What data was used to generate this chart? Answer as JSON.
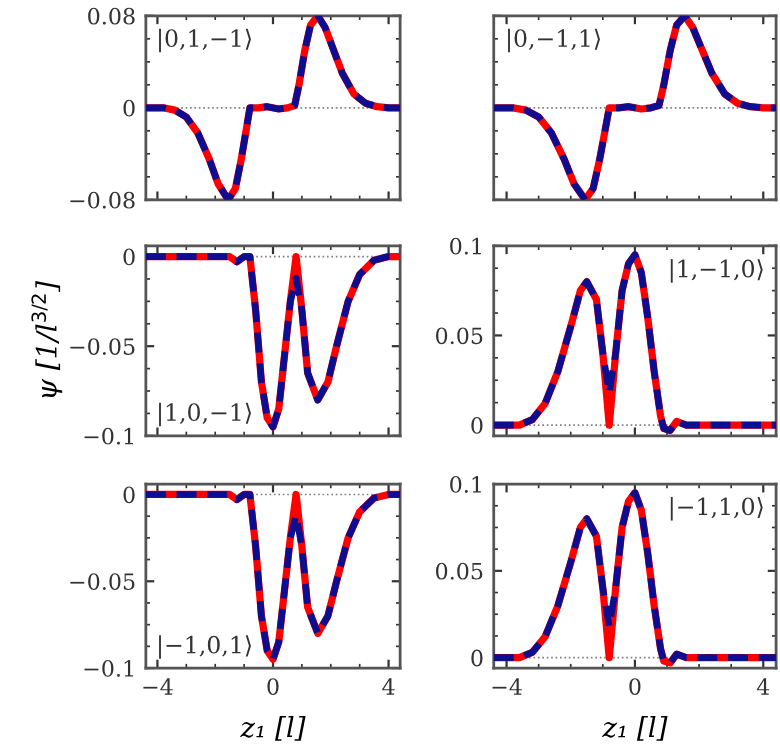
{
  "chart_data": [
    {
      "type": "line",
      "annotations": [
        "|0,1,−1⟩"
      ],
      "xlim": [
        -4.4,
        4.4
      ],
      "xticks": [
        -4,
        0,
        4
      ],
      "ylim": [
        -0.08,
        0.08
      ],
      "yticks": [
        {
          "value": -0.08,
          "label": "−0.08"
        },
        0,
        0.08
      ],
      "tick_labels": "y",
      "ref_lines": [
        {
          "axis": "y",
          "value": 0,
          "color": "#808080",
          "line_style": "dotted"
        }
      ],
      "series": [
        {
          "color": "#ff0000",
          "line_style": "solid",
          "x": [
            -4.4,
            -3.8,
            -3.4,
            -3.0,
            -2.6,
            -2.2,
            -1.9,
            -1.55,
            -1.3,
            -1.1,
            -0.9,
            -0.8,
            -0.5,
            -0.2,
            0.2,
            0.5,
            0.75,
            0.9,
            1.1,
            1.3,
            1.55,
            1.8,
            2.1,
            2.4,
            2.8,
            3.2,
            3.6,
            4.0,
            4.4
          ],
          "values": [
            0,
            0,
            -0.002,
            -0.008,
            -0.022,
            -0.045,
            -0.066,
            -0.08,
            -0.07,
            -0.045,
            -0.015,
            0,
            0,
            0.001,
            -0.001,
            0,
            0.002,
            0.02,
            0.05,
            0.072,
            0.08,
            0.07,
            0.05,
            0.03,
            0.012,
            0.004,
            0.001,
            0,
            0
          ]
        },
        {
          "color": "#0d0d8f",
          "line_style": "dashed",
          "x": [
            -4.4,
            -3.8,
            -3.4,
            -3.0,
            -2.6,
            -2.2,
            -1.9,
            -1.55,
            -1.3,
            -1.1,
            -0.9,
            -0.8,
            -0.5,
            -0.2,
            0.2,
            0.5,
            0.75,
            0.9,
            1.1,
            1.3,
            1.55,
            1.8,
            2.1,
            2.4,
            2.8,
            3.2,
            3.6,
            4.0,
            4.4
          ],
          "values": [
            0,
            0,
            -0.002,
            -0.008,
            -0.022,
            -0.045,
            -0.066,
            -0.08,
            -0.07,
            -0.045,
            -0.015,
            0,
            0,
            0.001,
            -0.001,
            0,
            0.002,
            0.02,
            0.05,
            0.072,
            0.08,
            0.07,
            0.05,
            0.03,
            0.012,
            0.004,
            0.001,
            0,
            0
          ]
        }
      ]
    },
    {
      "type": "line",
      "annotations": [
        "|0,−1,1⟩"
      ],
      "xlim": [
        -4.4,
        4.4
      ],
      "xticks": [
        -4,
        0,
        4
      ],
      "ylim": [
        -0.08,
        0.08
      ],
      "yticks": [
        {
          "value": -0.08,
          "label": null
        },
        0,
        0.08
      ],
      "tick_labels": false,
      "ref_lines": [
        {
          "axis": "y",
          "value": 0,
          "color": "#808080",
          "line_style": "dotted"
        }
      ],
      "series": [
        {
          "color": "#ff0000",
          "line_style": "solid",
          "x": [
            -4.4,
            -3.8,
            -3.4,
            -3.0,
            -2.6,
            -2.2,
            -1.9,
            -1.55,
            -1.3,
            -1.1,
            -0.9,
            -0.8,
            -0.5,
            -0.2,
            0.2,
            0.5,
            0.75,
            0.9,
            1.1,
            1.3,
            1.55,
            1.8,
            2.1,
            2.4,
            2.8,
            3.2,
            3.6,
            4.0,
            4.4
          ],
          "values": [
            0,
            0,
            -0.002,
            -0.008,
            -0.022,
            -0.045,
            -0.066,
            -0.08,
            -0.07,
            -0.045,
            -0.015,
            0,
            0,
            0.001,
            -0.001,
            0,
            0.002,
            0.02,
            0.05,
            0.072,
            0.08,
            0.07,
            0.05,
            0.03,
            0.012,
            0.004,
            0.001,
            0,
            0
          ]
        },
        {
          "color": "#0d0d8f",
          "line_style": "dashed",
          "x": [
            -4.4,
            -3.8,
            -3.4,
            -3.0,
            -2.6,
            -2.2,
            -1.9,
            -1.55,
            -1.3,
            -1.1,
            -0.9,
            -0.8,
            -0.5,
            -0.2,
            0.2,
            0.5,
            0.75,
            0.9,
            1.1,
            1.3,
            1.55,
            1.8,
            2.1,
            2.4,
            2.8,
            3.2,
            3.6,
            4.0,
            4.4
          ],
          "values": [
            0,
            0,
            -0.002,
            -0.008,
            -0.022,
            -0.045,
            -0.066,
            -0.08,
            -0.07,
            -0.045,
            -0.015,
            0,
            0,
            0.001,
            -0.001,
            0,
            0.002,
            0.02,
            0.05,
            0.072,
            0.08,
            0.07,
            0.05,
            0.03,
            0.012,
            0.004,
            0.001,
            0,
            0
          ]
        }
      ]
    },
    {
      "type": "line",
      "annotations": [
        "|1,0,−1⟩"
      ],
      "ylabel": "ψ [1/l$^{3/2}$]",
      "xlim": [
        -4.4,
        4.4
      ],
      "xticks": [
        -4,
        0,
        4
      ],
      "ylim": [
        -0.1,
        0.006
      ],
      "yticks": [
        {
          "value": -0.1,
          "label": "−0.1"
        },
        {
          "value": -0.05,
          "label": "−0.05"
        },
        0
      ],
      "tick_labels": "y",
      "ref_lines": [
        {
          "axis": "y",
          "value": 0,
          "color": "#808080",
          "line_style": "dotted"
        }
      ],
      "series": [
        {
          "color": "#ff0000",
          "line_style": "solid",
          "x": [
            -4.4,
            -3,
            -2,
            -1.5,
            -1.25,
            -1.0,
            -0.8,
            -0.6,
            -0.4,
            -0.2,
            0,
            0.2,
            0.4,
            0.6,
            0.8,
            1.0,
            1.2,
            1.55,
            1.9,
            2.2,
            2.6,
            3.0,
            3.5,
            4.0,
            4.4
          ],
          "values": [
            0,
            0,
            0,
            0,
            -0.003,
            0,
            0,
            -0.03,
            -0.07,
            -0.09,
            -0.095,
            -0.085,
            -0.055,
            -0.025,
            0,
            -0.03,
            -0.065,
            -0.08,
            -0.07,
            -0.05,
            -0.025,
            -0.01,
            -0.002,
            0,
            0
          ]
        },
        {
          "color": "#0d0d8f",
          "line_style": "dashed",
          "x": [
            -4.4,
            -3,
            -2,
            -1.5,
            -1.25,
            -1.0,
            -0.8,
            -0.6,
            -0.4,
            -0.2,
            0,
            0.2,
            0.4,
            0.6,
            0.8,
            1.0,
            1.2,
            1.55,
            1.9,
            2.2,
            2.6,
            3.0,
            3.5,
            4.0,
            4.4
          ],
          "values": [
            0,
            0,
            0,
            0,
            -0.003,
            0,
            0,
            -0.03,
            -0.07,
            -0.09,
            -0.095,
            -0.085,
            -0.055,
            -0.025,
            -0.012,
            -0.03,
            -0.065,
            -0.08,
            -0.07,
            -0.05,
            -0.025,
            -0.01,
            -0.002,
            0,
            0
          ]
        }
      ]
    },
    {
      "type": "line",
      "annotations": [
        "|1,−1,0⟩"
      ],
      "xlim": [
        -4.4,
        4.4
      ],
      "xticks": [
        -4,
        0,
        4
      ],
      "ylim": [
        -0.006,
        0.1
      ],
      "yticks": [
        0,
        0.05,
        0.1
      ],
      "tick_labels": "y",
      "ref_lines": [
        {
          "axis": "y",
          "value": 0,
          "color": "#808080",
          "line_style": "dotted"
        }
      ],
      "series": [
        {
          "color": "#ff0000",
          "line_style": "solid",
          "x": [
            -4.4,
            -3.6,
            -3.2,
            -2.8,
            -2.4,
            -2.0,
            -1.7,
            -1.5,
            -1.2,
            -1.0,
            -0.8,
            -0.6,
            -0.4,
            -0.2,
            0,
            0.2,
            0.4,
            0.6,
            0.8,
            0.9,
            1.1,
            1.3,
            1.6,
            2,
            3,
            4.4
          ],
          "values": [
            0,
            0,
            0.003,
            0.012,
            0.03,
            0.055,
            0.075,
            0.08,
            0.07,
            0.04,
            0,
            0.04,
            0.075,
            0.09,
            0.095,
            0.085,
            0.06,
            0.03,
            0.005,
            -0.002,
            -0.003,
            0.002,
            0,
            0,
            0,
            0
          ]
        },
        {
          "color": "#0d0d8f",
          "line_style": "dashed",
          "x": [
            -4.4,
            -3.6,
            -3.2,
            -2.8,
            -2.4,
            -2.0,
            -1.7,
            -1.5,
            -1.2,
            -1.0,
            -0.8,
            -0.6,
            -0.4,
            -0.2,
            0,
            0.2,
            0.4,
            0.6,
            0.8,
            0.9,
            1.1,
            1.3,
            1.6,
            2,
            3,
            4.4
          ],
          "values": [
            0,
            0,
            0.003,
            0.012,
            0.03,
            0.055,
            0.075,
            0.08,
            0.07,
            0.04,
            0.018,
            0.04,
            0.075,
            0.09,
            0.095,
            0.085,
            0.06,
            0.03,
            0.005,
            -0.002,
            -0.003,
            0.002,
            0,
            0,
            0,
            0
          ]
        }
      ]
    },
    {
      "type": "line",
      "annotations": [
        "|−1,0,1⟩"
      ],
      "xlabel": "z₁ [l]",
      "xlim": [
        -4.4,
        4.4
      ],
      "xticks": [
        {
          "value": -4,
          "label": "−4"
        },
        0,
        4
      ],
      "ylim": [
        -0.1,
        0.006
      ],
      "yticks": [
        {
          "value": -0.1,
          "label": "−0.1"
        },
        {
          "value": -0.05,
          "label": "−0.05"
        },
        0
      ],
      "ref_lines": [
        {
          "axis": "y",
          "value": 0,
          "color": "#808080",
          "line_style": "dotted"
        }
      ],
      "series": [
        {
          "color": "#ff0000",
          "line_style": "solid",
          "x": [
            -4.4,
            -3,
            -2,
            -1.5,
            -1.25,
            -1.0,
            -0.8,
            -0.6,
            -0.4,
            -0.2,
            0,
            0.2,
            0.4,
            0.6,
            0.8,
            1.0,
            1.2,
            1.55,
            1.9,
            2.2,
            2.6,
            3.0,
            3.5,
            4.0,
            4.4
          ],
          "values": [
            0,
            0,
            0,
            0,
            -0.003,
            0,
            0,
            -0.03,
            -0.07,
            -0.09,
            -0.095,
            -0.085,
            -0.055,
            -0.025,
            0,
            -0.03,
            -0.065,
            -0.08,
            -0.07,
            -0.05,
            -0.025,
            -0.01,
            -0.002,
            0,
            0
          ]
        },
        {
          "color": "#0d0d8f",
          "line_style": "dashed",
          "x": [
            -4.4,
            -3,
            -2,
            -1.5,
            -1.25,
            -1.0,
            -0.8,
            -0.6,
            -0.4,
            -0.2,
            0,
            0.2,
            0.4,
            0.6,
            0.8,
            1.0,
            1.2,
            1.55,
            1.9,
            2.2,
            2.6,
            3.0,
            3.5,
            4.0,
            4.4
          ],
          "values": [
            0,
            0,
            0,
            0,
            -0.003,
            0,
            0,
            -0.03,
            -0.07,
            -0.09,
            -0.095,
            -0.085,
            -0.055,
            -0.025,
            -0.012,
            -0.03,
            -0.065,
            -0.08,
            -0.07,
            -0.05,
            -0.025,
            -0.01,
            -0.002,
            0,
            0
          ]
        }
      ]
    },
    {
      "type": "line",
      "annotations": [
        "|−1,1,0⟩"
      ],
      "xlabel": "z₁ [l]",
      "xlim": [
        -4.4,
        4.4
      ],
      "xticks": [
        {
          "value": -4,
          "label": "−4"
        },
        0,
        4
      ],
      "ylim": [
        -0.006,
        0.1
      ],
      "yticks": [
        0,
        0.05,
        0.1
      ],
      "ref_lines": [
        {
          "axis": "y",
          "value": 0,
          "color": "#808080",
          "line_style": "dotted"
        }
      ],
      "series": [
        {
          "color": "#ff0000",
          "line_style": "solid",
          "x": [
            -4.4,
            -3.6,
            -3.2,
            -2.8,
            -2.4,
            -2.0,
            -1.7,
            -1.5,
            -1.2,
            -1.0,
            -0.8,
            -0.6,
            -0.4,
            -0.2,
            0,
            0.2,
            0.4,
            0.6,
            0.8,
            0.9,
            1.1,
            1.3,
            1.6,
            2,
            3,
            4.4
          ],
          "values": [
            0,
            0,
            0.003,
            0.012,
            0.03,
            0.055,
            0.075,
            0.08,
            0.07,
            0.04,
            0,
            0.04,
            0.075,
            0.09,
            0.095,
            0.085,
            0.06,
            0.03,
            0.005,
            -0.002,
            -0.003,
            0.002,
            0,
            0,
            0,
            0
          ]
        },
        {
          "color": "#0d0d8f",
          "line_style": "dashed",
          "x": [
            -4.4,
            -3.6,
            -3.2,
            -2.8,
            -2.4,
            -2.0,
            -1.7,
            -1.5,
            -1.2,
            -1.0,
            -0.8,
            -0.6,
            -0.4,
            -0.2,
            0,
            0.2,
            0.4,
            0.6,
            0.8,
            0.9,
            1.1,
            1.3,
            1.6,
            2,
            3,
            4.4
          ],
          "values": [
            0,
            0,
            0.003,
            0.012,
            0.03,
            0.055,
            0.075,
            0.08,
            0.07,
            0.04,
            0.018,
            0.04,
            0.075,
            0.09,
            0.095,
            0.085,
            0.06,
            0.03,
            0.005,
            -0.002,
            -0.003,
            0.002,
            0,
            0,
            0,
            0
          ]
        }
      ]
    }
  ]
}
